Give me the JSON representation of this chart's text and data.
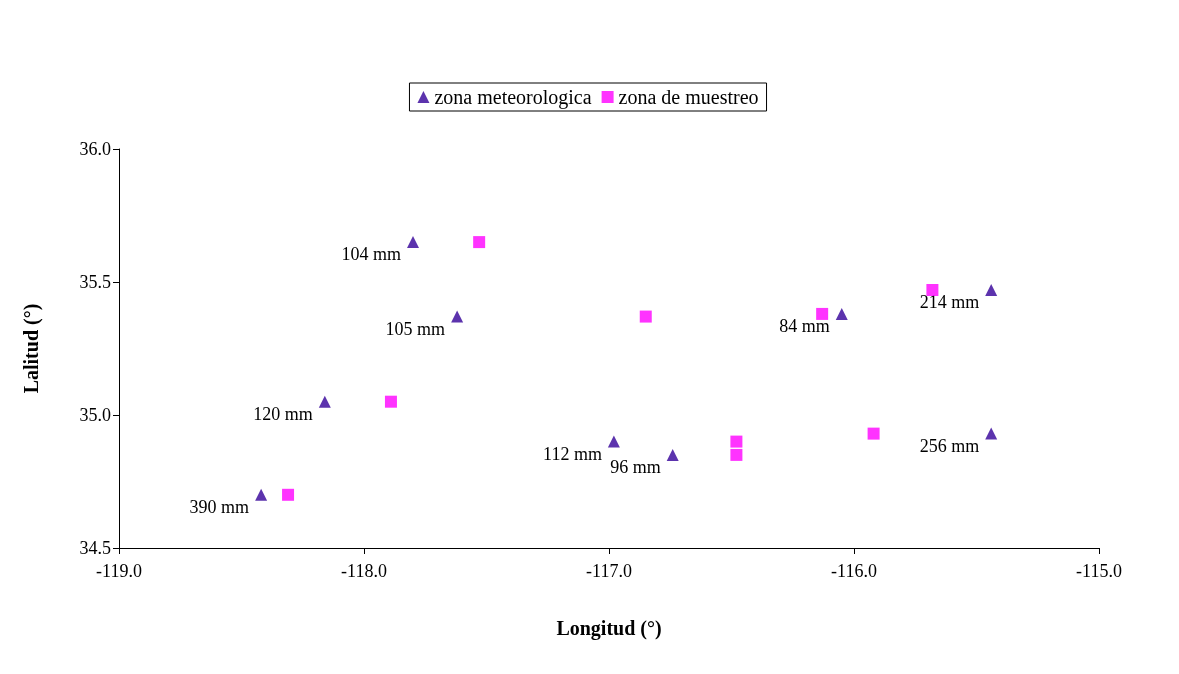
{
  "chart_data": {
    "type": "scatter",
    "xlabel": "Longitud (°)",
    "ylabel": "Lalitud (°)",
    "xlim": [
      -119,
      -115
    ],
    "xticks": [
      {
        "value": -119,
        "label": "-119.0"
      },
      {
        "value": -118,
        "label": "-118.0"
      },
      {
        "value": -117,
        "label": "-117.0"
      },
      {
        "value": -116,
        "label": "-116.0"
      },
      {
        "value": -115,
        "label": "-115.0"
      }
    ],
    "ylim": [
      34.5,
      36
    ],
    "yticks": [
      {
        "value": 34.5,
        "label": "34.5"
      },
      {
        "value": 35,
        "label": "35.0"
      },
      {
        "value": 35.5,
        "label": "35.5"
      },
      {
        "value": 36,
        "label": "36.0"
      }
    ],
    "grid": false,
    "legend": "top",
    "series": [
      {
        "name": "zona meteorologica",
        "color": "#330099",
        "marker": "triangle",
        "x": [
          -117.8,
          -117.62,
          -118.16,
          -118.42,
          -116.98,
          -116.74,
          -116.05,
          -115.44,
          -115.44
        ],
        "values": [
          35.65,
          35.37,
          35.05,
          34.7,
          34.9,
          34.85,
          35.38,
          35.47,
          34.93
        ]
      },
      {
        "name": "zona de muestreo",
        "color": "#ff00ff",
        "marker": "square",
        "x": [
          -117.53,
          -116.85,
          -117.89,
          -118.31,
          -116.48,
          -116.48,
          -116.13,
          -115.68,
          -115.92
        ],
        "values": [
          35.65,
          35.37,
          35.05,
          34.7,
          34.9,
          34.85,
          35.38,
          35.47,
          34.93
        ]
      }
    ],
    "annotations": [
      {
        "text": "104 mm",
        "x": -117.8,
        "y": 35.65
      },
      {
        "text": "105 mm",
        "x": -117.62,
        "y": 35.37
      },
      {
        "text": "120 mm",
        "x": -118.16,
        "y": 35.05
      },
      {
        "text": "390 mm",
        "x": -118.42,
        "y": 34.7
      },
      {
        "text": "112 mm",
        "x": -116.98,
        "y": 34.9
      },
      {
        "text": "96 mm",
        "x": -116.74,
        "y": 34.85
      },
      {
        "text": "84 mm",
        "x": -116.05,
        "y": 35.38
      },
      {
        "text": "214 mm",
        "x": -115.44,
        "y": 35.47
      },
      {
        "text": "256 mm",
        "x": -115.44,
        "y": 34.93
      }
    ]
  }
}
